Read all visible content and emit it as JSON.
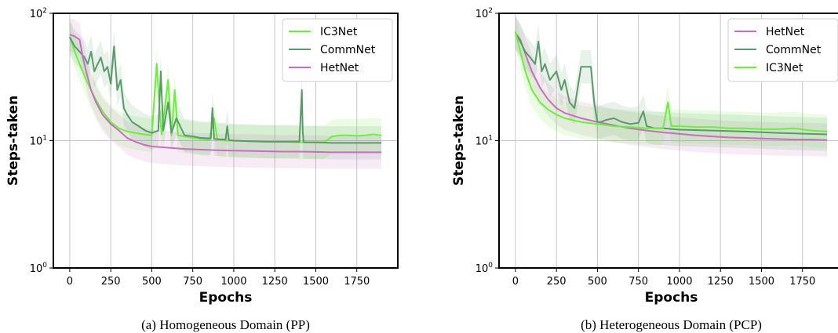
{
  "chart_data": [
    {
      "type": "line",
      "caption": "(a) Homogeneous Domain (PP)",
      "xlabel": "Epochs",
      "ylabel": "Steps-taken",
      "xlim": [
        -100,
        2000
      ],
      "ylim": [
        1,
        100
      ],
      "yscale": "log",
      "grid": "vertical lines at x ticks; horizontal line at 10",
      "legend_position": "top-right",
      "x_ticks": [
        0,
        250,
        500,
        750,
        1000,
        1250,
        1500,
        1750
      ],
      "x_tick_labels": [
        "0",
        "250",
        "500",
        "750",
        "1000",
        "1250",
        "1500",
        "1750"
      ],
      "y_ticks": [
        1,
        10,
        100
      ],
      "y_tick_labels": [
        {
          "base": "10",
          "exp": "0"
        },
        {
          "base": "10",
          "exp": "1"
        },
        {
          "base": "10",
          "exp": "2"
        }
      ],
      "legend": [
        "IC3Net",
        "CommNet",
        "HetNet"
      ],
      "series": [
        {
          "name": "IC3Net",
          "color": "#6bf03a",
          "x": [
            0,
            30,
            60,
            100,
            150,
            200,
            250,
            300,
            350,
            400,
            450,
            500,
            530,
            545,
            560,
            600,
            620,
            640,
            660,
            700,
            750,
            800,
            850,
            880,
            900,
            950,
            1000,
            1100,
            1200,
            1300,
            1400,
            1500,
            1550,
            1600,
            1650,
            1700,
            1750,
            1800,
            1850,
            1900
          ],
          "y": [
            65,
            50,
            40,
            30,
            22,
            17,
            14,
            12.5,
            11.8,
            11.5,
            11.2,
            11,
            40,
            20,
            11.2,
            30,
            11,
            25,
            11,
            10.8,
            10.5,
            10.3,
            10.2,
            15,
            10.1,
            10,
            10,
            9.9,
            9.8,
            9.8,
            9.7,
            9.7,
            9.7,
            10.8,
            11,
            11,
            10.9,
            11,
            11.2,
            11
          ]
        },
        {
          "name": "CommNet",
          "color": "#5a9a6a",
          "x": [
            0,
            30,
            60,
            90,
            110,
            130,
            150,
            170,
            190,
            210,
            230,
            250,
            270,
            290,
            310,
            330,
            350,
            380,
            420,
            460,
            500,
            540,
            555,
            570,
            600,
            620,
            650,
            700,
            750,
            800,
            860,
            870,
            880,
            950,
            960,
            970,
            1000,
            1100,
            1200,
            1300,
            1400,
            1415,
            1420,
            1425,
            1430,
            1500,
            1600,
            1700,
            1800,
            1900
          ],
          "y": [
            65,
            55,
            50,
            45,
            40,
            50,
            35,
            40,
            45,
            35,
            38,
            28,
            55,
            25,
            30,
            18,
            16,
            14,
            13,
            12,
            11.5,
            12,
            35,
            12,
            20,
            11.5,
            15,
            11,
            10.8,
            10.5,
            10.4,
            18,
            10.3,
            10.2,
            13,
            10.1,
            10,
            9.9,
            9.8,
            9.8,
            9.8,
            25,
            12,
            9.8,
            9.7,
            9.7,
            9.6,
            9.6,
            9.6,
            9.6
          ]
        },
        {
          "name": "HetNet",
          "color": "#c86ec0",
          "x": [
            0,
            30,
            60,
            80,
            100,
            130,
            160,
            200,
            250,
            300,
            350,
            400,
            450,
            500,
            600,
            700,
            800,
            900,
            1000,
            1100,
            1200,
            1300,
            1400,
            1500,
            1600,
            1700,
            1800,
            1900
          ],
          "y": [
            68,
            66,
            62,
            45,
            35,
            25,
            20,
            16,
            13.5,
            12,
            10.5,
            9.8,
            9.3,
            9,
            8.8,
            8.6,
            8.5,
            8.4,
            8.35,
            8.3,
            8.25,
            8.2,
            8.2,
            8.15,
            8.1,
            8.1,
            8.1,
            8.1
          ]
        }
      ]
    },
    {
      "type": "line",
      "caption": "(b) Heterogeneous Domain (PCP)",
      "xlabel": "Epochs",
      "ylabel": "Steps-taken",
      "xlim": [
        -100,
        2000
      ],
      "ylim": [
        1,
        100
      ],
      "yscale": "log",
      "grid": "vertical lines at x ticks; horizontal line at 10",
      "legend_position": "top-right",
      "x_ticks": [
        0,
        250,
        500,
        750,
        1000,
        1250,
        1500,
        1750
      ],
      "x_tick_labels": [
        "0",
        "250",
        "500",
        "750",
        "1000",
        "1250",
        "1500",
        "1750"
      ],
      "y_ticks": [
        1,
        10,
        100
      ],
      "y_tick_labels": [
        {
          "base": "10",
          "exp": "0"
        },
        {
          "base": "10",
          "exp": "1"
        },
        {
          "base": "10",
          "exp": "2"
        }
      ],
      "legend": [
        "HetNet",
        "CommNet",
        "IC3Net"
      ],
      "series": [
        {
          "name": "HetNet",
          "color": "#c86ec0",
          "x": [
            0,
            30,
            60,
            100,
            150,
            200,
            250,
            300,
            400,
            500,
            600,
            700,
            800,
            900,
            1000,
            1100,
            1200,
            1300,
            1400,
            1500,
            1600,
            1700,
            1800,
            1900
          ],
          "y": [
            70,
            62,
            48,
            35,
            26,
            21,
            18,
            16.5,
            15,
            14,
            13.2,
            12.5,
            12,
            11.6,
            11.3,
            11,
            10.8,
            10.6,
            10.5,
            10.4,
            10.3,
            10.2,
            10.2,
            10.1
          ]
        },
        {
          "name": "CommNet",
          "color": "#5a9a6a",
          "x": [
            0,
            30,
            60,
            90,
            120,
            140,
            160,
            180,
            210,
            250,
            280,
            300,
            330,
            360,
            400,
            430,
            460,
            480,
            500,
            520,
            550,
            600,
            650,
            700,
            750,
            780,
            800,
            850,
            900,
            1000,
            1200,
            1400,
            1600,
            1800,
            1900
          ],
          "y": [
            70,
            60,
            50,
            45,
            40,
            60,
            35,
            40,
            30,
            35,
            25,
            30,
            20,
            18,
            38,
            38,
            38,
            20,
            14,
            14,
            14.5,
            15,
            14,
            13.5,
            13.8,
            17,
            13,
            12.5,
            12.5,
            12.2,
            12,
            11.8,
            11.5,
            11.3,
            11.2
          ]
        },
        {
          "name": "IC3Net",
          "color": "#6bf03a",
          "x": [
            0,
            30,
            60,
            100,
            150,
            200,
            250,
            300,
            400,
            500,
            600,
            700,
            800,
            900,
            930,
            950,
            1000,
            1100,
            1200,
            1300,
            1400,
            1500,
            1600,
            1700,
            1800,
            1900
          ],
          "y": [
            72,
            50,
            35,
            25,
            20,
            17.5,
            16,
            15,
            14,
            13.5,
            13,
            12.8,
            12.5,
            12.5,
            20,
            13,
            13,
            12.8,
            12.8,
            12.5,
            12.5,
            12.3,
            12.3,
            12.5,
            12,
            11.8
          ]
        }
      ]
    }
  ]
}
